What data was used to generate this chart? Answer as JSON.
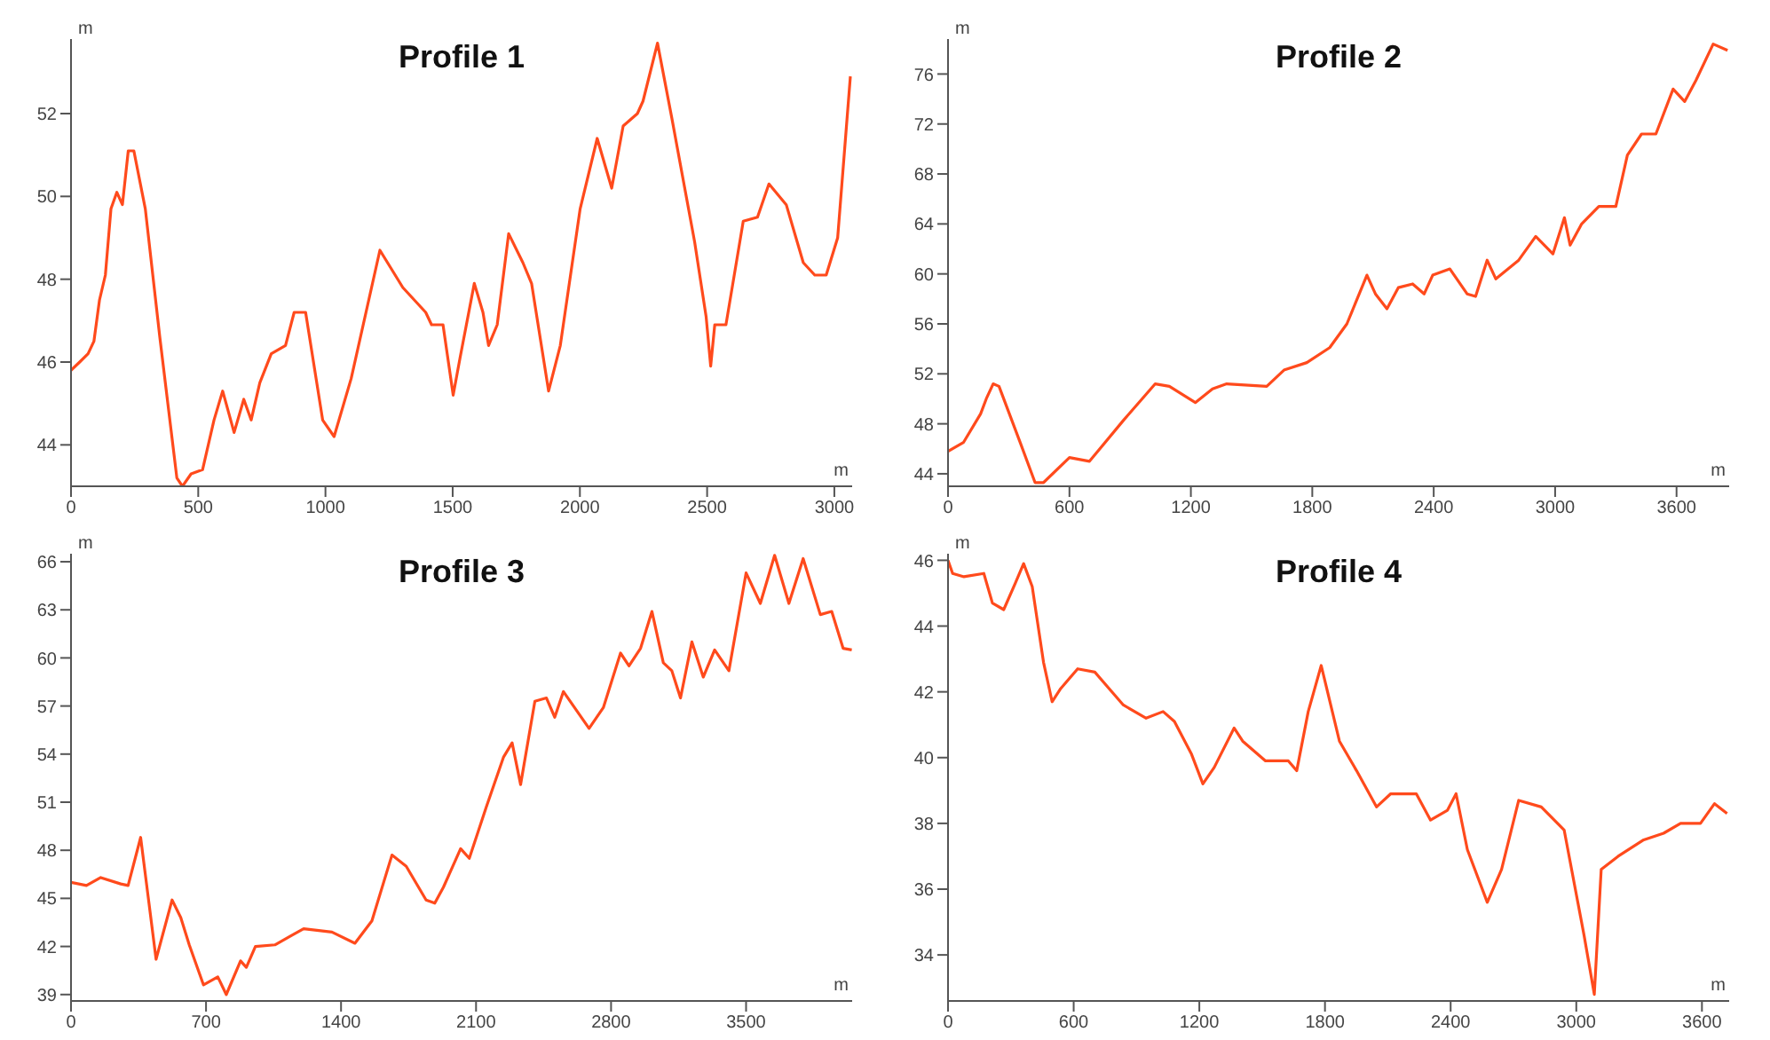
{
  "chart_data": [
    {
      "type": "line",
      "title": "Profile 1",
      "xlabel": "m",
      "ylabel": "m",
      "xlim": [
        0,
        3070
      ],
      "xticks": [
        0,
        500,
        1000,
        1500,
        2000,
        2500,
        3000
      ],
      "ylim": [
        43,
        53.8
      ],
      "yticks": [
        44,
        46,
        48,
        50,
        52
      ],
      "x": [
        0,
        34,
        67,
        90,
        112,
        135,
        157,
        180,
        202,
        225,
        247,
        292,
        349,
        416,
        438,
        472,
        517,
        562,
        596,
        641,
        679,
        708,
        742,
        787,
        843,
        877,
        922,
        989,
        1034,
        1101,
        1214,
        1304,
        1394,
        1417,
        1462,
        1502,
        1529,
        1585,
        1619,
        1641,
        1675,
        1720,
        1776,
        1810,
        1877,
        1923,
        2001,
        2068,
        2125,
        2170,
        2226,
        2248,
        2305,
        2361,
        2451,
        2496,
        2514,
        2530,
        2574,
        2642,
        2698,
        2743,
        2811,
        2878,
        2923,
        2968,
        3013,
        3063
      ],
      "series": [
        {
          "color": "#ff4a1c",
          "values": [
            45.8,
            46,
            46.2,
            46.5,
            47.5,
            48.1,
            49.7,
            50.1,
            49.8,
            51.1,
            51.1,
            49.7,
            46.6,
            43.2,
            43,
            43.3,
            43.4,
            44.6,
            45.3,
            44.3,
            45.1,
            44.6,
            45.5,
            46.2,
            46.4,
            47.2,
            47.2,
            44.6,
            44.2,
            45.6,
            48.7,
            47.8,
            47.2,
            46.9,
            46.9,
            45.2,
            46.1,
            47.9,
            47.2,
            46.4,
            46.9,
            49.1,
            48.4,
            47.9,
            45.3,
            46.4,
            49.7,
            51.4,
            50.2,
            51.7,
            52,
            52.3,
            53.7,
            51.9,
            48.9,
            47.1,
            45.9,
            46.9,
            46.9,
            49.4,
            49.5,
            50.3,
            49.8,
            48.4,
            48.1,
            48.1,
            49,
            52.9
          ]
        }
      ]
    },
    {
      "type": "line",
      "title": "Profile 2",
      "xlabel": "m",
      "ylabel": "m",
      "xlim": [
        0,
        3860
      ],
      "xticks": [
        0,
        600,
        1200,
        1800,
        2400,
        3000,
        3600
      ],
      "ylim": [
        43,
        78.8
      ],
      "yticks": [
        44,
        48,
        52,
        56,
        60,
        64,
        68,
        72,
        76
      ],
      "x": [
        0,
        76,
        161,
        189,
        223,
        252,
        359,
        430,
        472,
        600,
        699,
        868,
        1024,
        1094,
        1222,
        1307,
        1377,
        1575,
        1660,
        1773,
        1886,
        1971,
        2070,
        2112,
        2169,
        2225,
        2296,
        2353,
        2395,
        2480,
        2565,
        2607,
        2664,
        2707,
        2820,
        2904,
        2989,
        3046,
        3074,
        3131,
        3216,
        3300,
        3357,
        3427,
        3498,
        3583,
        3640,
        3696,
        3781,
        3852
      ],
      "series": [
        {
          "color": "#ff4a1c",
          "values": [
            45.8,
            46.5,
            48.8,
            50,
            51.2,
            51,
            46.4,
            43.3,
            43.3,
            45.3,
            45,
            48.3,
            51.2,
            51,
            49.7,
            50.8,
            51.2,
            51,
            52.3,
            52.9,
            54.1,
            56,
            59.9,
            58.4,
            57.2,
            58.9,
            59.2,
            58.4,
            59.9,
            60.4,
            58.4,
            58.2,
            61.1,
            59.6,
            61.1,
            63,
            61.6,
            64.5,
            62.3,
            64,
            65.4,
            65.4,
            69.5,
            71.2,
            71.2,
            74.8,
            73.8,
            75.5,
            78.4,
            77.9
          ]
        }
      ]
    },
    {
      "type": "line",
      "title": "Profile 3",
      "xlabel": "m",
      "ylabel": "m",
      "xlim": [
        0,
        4050
      ],
      "xticks": [
        0,
        700,
        1400,
        2100,
        2800,
        3500
      ],
      "ylim": [
        38.6,
        66.5
      ],
      "yticks": [
        39,
        42,
        45,
        48,
        51,
        54,
        57,
        60,
        63,
        66
      ],
      "x": [
        0,
        80,
        154,
        258,
        296,
        361,
        400,
        441,
        524,
        569,
        613,
        687,
        761,
        805,
        879,
        909,
        956,
        1057,
        1146,
        1206,
        1353,
        1472,
        1560,
        1664,
        1738,
        1841,
        1886,
        1931,
        2020,
        2065,
        2153,
        2242,
        2287,
        2331,
        2405,
        2465,
        2508,
        2553,
        2686,
        2760,
        2849,
        2893,
        2953,
        3012,
        3071,
        3115,
        3160,
        3219,
        3278,
        3337,
        3411,
        3500,
        3574,
        3648,
        3722,
        3796,
        3885,
        3944,
        4003,
        4048
      ],
      "series": [
        {
          "color": "#ff4a1c",
          "values": [
            46,
            45.8,
            46.3,
            45.9,
            45.8,
            48.8,
            45.1,
            41.2,
            44.9,
            43.8,
            42.1,
            39.6,
            40.1,
            39,
            41.1,
            40.7,
            42,
            42.1,
            42.7,
            43.1,
            42.9,
            42.2,
            43.6,
            47.7,
            47,
            44.9,
            44.7,
            45.7,
            48.1,
            47.5,
            50.7,
            53.8,
            54.7,
            52.1,
            57.3,
            57.5,
            56.3,
            57.9,
            55.6,
            56.9,
            60.3,
            59.5,
            60.6,
            62.9,
            59.7,
            59.2,
            57.5,
            61,
            58.8,
            60.5,
            59.2,
            65.3,
            63.4,
            66.4,
            63.4,
            66.2,
            62.7,
            62.9,
            60.6,
            60.5
          ]
        }
      ]
    },
    {
      "type": "line",
      "title": "Profile 4",
      "xlabel": "m",
      "ylabel": "m",
      "xlim": [
        0,
        3730
      ],
      "xticks": [
        0,
        600,
        1200,
        1800,
        2400,
        3000,
        3600
      ],
      "ylim": [
        32.6,
        46.2
      ],
      "yticks": [
        34,
        36,
        38,
        40,
        42,
        44,
        46
      ],
      "x": [
        0,
        22,
        76,
        171,
        212,
        266,
        321,
        361,
        402,
        456,
        497,
        538,
        619,
        701,
        837,
        946,
        1027,
        1081,
        1163,
        1217,
        1271,
        1366,
        1407,
        1516,
        1625,
        1665,
        1720,
        1782,
        1869,
        1951,
        2046,
        2114,
        2236,
        2304,
        2385,
        2426,
        2480,
        2575,
        2643,
        2725,
        2833,
        2942,
        3037,
        3086,
        3119,
        3200,
        3322,
        3417,
        3498,
        3593,
        3660,
        3720
      ],
      "series": [
        {
          "color": "#ff4a1c",
          "values": [
            46,
            45.6,
            45.5,
            45.6,
            44.7,
            44.5,
            45.3,
            45.9,
            45.2,
            42.9,
            41.7,
            42.1,
            42.7,
            42.6,
            41.6,
            41.2,
            41.4,
            41.1,
            40.1,
            39.2,
            39.7,
            40.9,
            40.5,
            39.9,
            39.9,
            39.6,
            41.4,
            42.8,
            40.5,
            39.6,
            38.5,
            38.9,
            38.9,
            38.1,
            38.4,
            38.9,
            37.2,
            35.6,
            36.6,
            38.7,
            38.5,
            37.8,
            34.6,
            32.8,
            36.6,
            37,
            37.5,
            37.7,
            38,
            38,
            38.6,
            38.3
          ]
        }
      ]
    }
  ]
}
